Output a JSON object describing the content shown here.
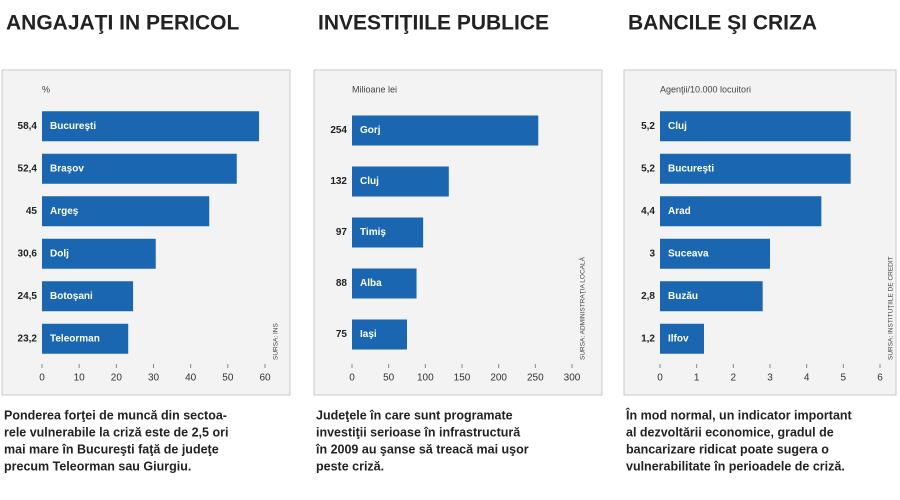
{
  "chart_data": [
    {
      "type": "bar",
      "orientation": "horizontal",
      "title": "ANGAJAŢI IN PERICOL",
      "unit_label": "%",
      "source": "SURSA: INS",
      "categories": [
        "Bucureşti",
        "Braşov",
        "Argeş",
        "Dolj",
        "Botoşani",
        "Teleorman"
      ],
      "values": [
        58.4,
        52.4,
        45,
        30.6,
        24.5,
        23.2
      ],
      "value_labels": [
        "58,4",
        "52,4",
        "45",
        "30,6",
        "24,5",
        "23,2"
      ],
      "color": "#1a66b0",
      "xlim": [
        0,
        60
      ],
      "xticks": [
        0,
        10,
        20,
        30,
        40,
        50,
        60
      ],
      "caption": [
        "Ponderea forţei de muncă din sectoa-",
        "rele vulnerabile la criză este de 2,5 ori",
        "mai mare în Bucureşti faţă de judeţe",
        "precum Teleorman sau Giurgiu."
      ]
    },
    {
      "type": "bar",
      "orientation": "horizontal",
      "title": "INVESTIŢIILE PUBLICE",
      "unit_label": "Milioane lei",
      "source": "SURSA: ADMINISTRAŢIA LOCALĂ",
      "categories": [
        "Gorj",
        "Cluj",
        "Timiş",
        "Alba",
        "Iaşi"
      ],
      "values": [
        254,
        132,
        97,
        88,
        75
      ],
      "color": "#1a66b0",
      "xlim": [
        0,
        300
      ],
      "xticks": [
        0,
        50,
        100,
        150,
        200,
        250,
        300
      ],
      "caption": [
        "Judeţele în care sunt programate",
        "investiţii serioase în infrastructură",
        "în 2009 au şanse să treacă mai uşor",
        "peste criză."
      ]
    },
    {
      "type": "bar",
      "orientation": "horizontal",
      "title": "BANCILE ŞI CRIZA",
      "unit_label": "Agenţii/10.000 locuitori",
      "source": "SURSA: INSTITUŢIILE DE CREDIT",
      "categories": [
        "Cluj",
        "Bucureşti",
        "Arad",
        "Suceava",
        "Buzău",
        "Ilfov"
      ],
      "values": [
        5.2,
        5.2,
        4.4,
        3,
        2.8,
        1.2
      ],
      "value_labels": [
        "5,2",
        "5,2",
        "4,4",
        "3",
        "2,8",
        "1,2"
      ],
      "color": "#1a66b0",
      "xlim": [
        0,
        6
      ],
      "xticks": [
        0,
        1,
        2,
        3,
        4,
        5,
        6
      ],
      "caption": [
        "În mod normal, un indicator important",
        "al dezvoltării economice, gradul de",
        "bancarizare ridicat poate sugera o",
        "vulnerabilitate în perioadele de criză."
      ]
    }
  ]
}
